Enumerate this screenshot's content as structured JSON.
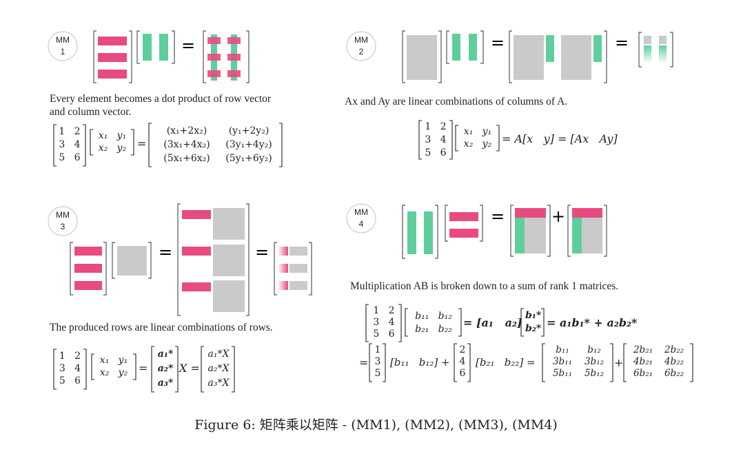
{
  "colors": {
    "pink": "#e74b7f",
    "green": "#5ecf9b",
    "gray": "#cacaca",
    "bracket": "#555555"
  },
  "mm1": {
    "label_top": "MM",
    "label_num": "1",
    "equals": "=",
    "desc_line1": "Every element becomes a dot product of row vector",
    "desc_line2": "and column vector.",
    "A": [
      [
        "1",
        "2"
      ],
      [
        "3",
        "4"
      ],
      [
        "5",
        "6"
      ]
    ],
    "X": [
      [
        "x₁",
        "y₁"
      ],
      [
        "x₂",
        "y₂"
      ]
    ],
    "R": [
      [
        "(x₁+2x₂)",
        "(y₁+2y₂)"
      ],
      [
        "(3x₁+4x₂)",
        "(3y₁+4y₂)"
      ],
      [
        "(5x₁+6x₂)",
        "(5y₁+6y₂)"
      ]
    ]
  },
  "mm2": {
    "label_top": "MM",
    "label_num": "2",
    "equals": "=",
    "desc": "Ax and Ay  are linear combinations of columns of A.",
    "A": [
      [
        "1",
        "2"
      ],
      [
        "3",
        "4"
      ],
      [
        "5",
        "6"
      ]
    ],
    "X": [
      [
        "x₁",
        "y₁"
      ],
      [
        "x₂",
        "y₂"
      ]
    ],
    "rhs": "= A[x   y] = [Ax   Ay]"
  },
  "mm3": {
    "label_top": "MM",
    "label_num": "3",
    "equals": "=",
    "desc": "The produced rows are linear combinations of rows.",
    "A": [
      [
        "1",
        "2"
      ],
      [
        "3",
        "4"
      ],
      [
        "5",
        "6"
      ]
    ],
    "X": [
      [
        "x₁",
        "y₁"
      ],
      [
        "x₂",
        "y₂"
      ]
    ],
    "R1": [
      "a₁*",
      "a₂*",
      "a₃*"
    ],
    "mid": "X =",
    "R2": [
      "a₁*X",
      "a₂*X",
      "a₃*X"
    ]
  },
  "mm4": {
    "label_top": "MM",
    "label_num": "4",
    "equals": "=",
    "plus": "+",
    "desc": "Multiplication AB is broken down to a sum of rank 1 matrices.",
    "A": [
      [
        "1",
        "2"
      ],
      [
        "3",
        "4"
      ],
      [
        "5",
        "6"
      ]
    ],
    "B": [
      [
        "b₁₁",
        "b₁₂"
      ],
      [
        "b₂₁",
        "b₂₂"
      ]
    ],
    "line1_mid": "= [a₁   a₂]",
    "line1_rows": [
      "b₁*",
      "b₂*"
    ],
    "line1_end": "= a₁b₁* + a₂b₂*",
    "line2_start": "=",
    "c1": [
      "1",
      "3",
      "5"
    ],
    "r1": "[b₁₁   b₁₂] +",
    "c2": [
      "2",
      "4",
      "6"
    ],
    "r2": "[b₂₁   b₂₂] =",
    "M1": [
      [
        "b₁₁",
        "b₁₂"
      ],
      [
        "3b₁₁",
        "3b₁₂"
      ],
      [
        "5b₁₁",
        "5b₁₂"
      ]
    ],
    "M2": [
      [
        "2b₂₁",
        "2b₂₂"
      ],
      [
        "4b₂₁",
        "4b₂₂"
      ],
      [
        "6b₂₁",
        "6b₂₂"
      ]
    ]
  },
  "caption": "Figure 6: 矩阵乘以矩阵 - (MM1), (MM2), (MM3), (MM4)"
}
